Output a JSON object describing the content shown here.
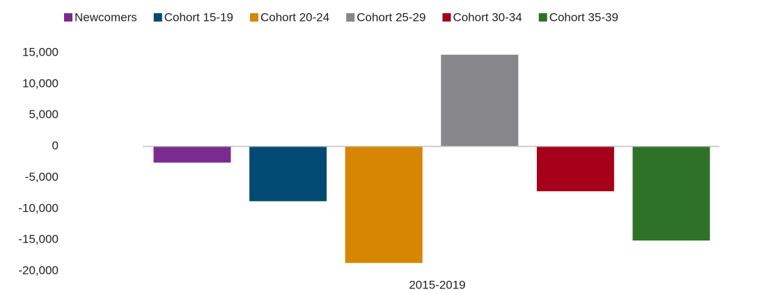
{
  "chart_data": {
    "type": "bar",
    "categories": [
      "2015-2019"
    ],
    "series": [
      {
        "name": "Newcomers",
        "color": "#7b2a8f",
        "values": [
          -2600
        ]
      },
      {
        "name": "Cohort 15-19",
        "color": "#004a73",
        "values": [
          -8800
        ]
      },
      {
        "name": "Cohort 20-24",
        "color": "#d68600",
        "values": [
          -18700
        ]
      },
      {
        "name": "Cohort 25-29",
        "color": "#87878b",
        "values": [
          14700
        ]
      },
      {
        "name": "Cohort 30-34",
        "color": "#a6001a",
        "values": [
          -7200
        ]
      },
      {
        "name": "Cohort 35-39",
        "color": "#2e7228",
        "values": [
          -15100
        ]
      }
    ],
    "ylim": [
      -20000,
      15000
    ],
    "yticks": [
      {
        "value": -20000,
        "label": "-20,000"
      },
      {
        "value": -15000,
        "label": "-15,000"
      },
      {
        "value": -10000,
        "label": "-10,000"
      },
      {
        "value": -5000,
        "label": "-5,000"
      },
      0,
      {
        "value": 5000,
        "label": "5,000"
      },
      {
        "value": 10000,
        "label": "10,000"
      },
      {
        "value": 15000,
        "label": "15,000"
      }
    ],
    "grid": false,
    "legend": "top"
  }
}
